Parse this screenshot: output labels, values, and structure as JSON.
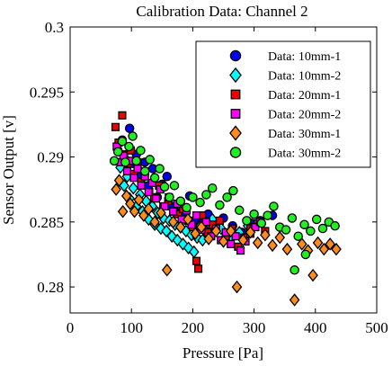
{
  "chart_data": {
    "type": "scatter",
    "title": "Calibration Data: Channel 2",
    "xlabel": "Pressure [Pa]",
    "ylabel": "Sensor Output [v]",
    "xlim": [
      0,
      500
    ],
    "ylim": [
      0.278,
      0.3
    ],
    "xticks": [
      0,
      100,
      200,
      300,
      400,
      500
    ],
    "yticks": [
      0.28,
      0.285,
      0.29,
      0.295,
      0.3
    ],
    "ytick_labels": [
      "0.28",
      "0.285",
      "0.29",
      "0.295",
      "0.3"
    ],
    "grid": false,
    "legend_position": "top-right",
    "series": [
      {
        "name": "Data: 10mm-1",
        "marker": "circle",
        "color": "#0000ee",
        "points": [
          [
            78,
            0.2905
          ],
          [
            85,
            0.2913
          ],
          [
            90,
            0.2898
          ],
          [
            97,
            0.2922
          ],
          [
            102,
            0.2895
          ],
          [
            108,
            0.2902
          ],
          [
            115,
            0.2885
          ],
          [
            122,
            0.2896
          ],
          [
            128,
            0.2878
          ],
          [
            135,
            0.2891
          ],
          [
            142,
            0.2869
          ],
          [
            150,
            0.2879
          ],
          [
            158,
            0.2885
          ],
          [
            165,
            0.2862
          ],
          [
            172,
            0.2858
          ],
          [
            180,
            0.2866
          ],
          [
            188,
            0.2856
          ],
          [
            195,
            0.287
          ],
          [
            205,
            0.2852
          ],
          [
            215,
            0.2849
          ],
          [
            225,
            0.2856
          ],
          [
            235,
            0.2846
          ],
          [
            250,
            0.2853
          ],
          [
            265,
            0.2847
          ],
          [
            280,
            0.2842
          ],
          [
            295,
            0.2849
          ],
          [
            310,
            0.2851
          ],
          [
            330,
            0.2855
          ]
        ]
      },
      {
        "name": "Data: 10mm-2",
        "marker": "diamond",
        "color": "#00ffff",
        "points": [
          [
            82,
            0.2892
          ],
          [
            88,
            0.2878
          ],
          [
            93,
            0.2885
          ],
          [
            97,
            0.2868
          ],
          [
            103,
            0.2876
          ],
          [
            108,
            0.2862
          ],
          [
            114,
            0.2871
          ],
          [
            118,
            0.2858
          ],
          [
            124,
            0.2866
          ],
          [
            128,
            0.2852
          ],
          [
            134,
            0.2862
          ],
          [
            138,
            0.2848
          ],
          [
            143,
            0.2857
          ],
          [
            148,
            0.2845
          ],
          [
            152,
            0.2853
          ],
          [
            157,
            0.2843
          ],
          [
            162,
            0.2851
          ],
          [
            166,
            0.2839
          ],
          [
            171,
            0.2848
          ],
          [
            175,
            0.2836
          ],
          [
            180,
            0.2846
          ],
          [
            184,
            0.2833
          ],
          [
            189,
            0.2843
          ],
          [
            193,
            0.283
          ],
          [
            198,
            0.284
          ],
          [
            202,
            0.2827
          ],
          [
            207,
            0.2838
          ],
          [
            211,
            0.2846
          ],
          [
            216,
            0.2836
          ],
          [
            220,
            0.2843
          ],
          [
            226,
            0.2849
          ],
          [
            232,
            0.2852
          ],
          [
            246,
            0.2845
          ],
          [
            262,
            0.2839
          ],
          [
            276,
            0.2842
          ],
          [
            290,
            0.2847
          ]
        ]
      },
      {
        "name": "Data: 20mm-1",
        "marker": "square",
        "color": "#ee0000",
        "points": [
          [
            74,
            0.2923
          ],
          [
            79,
            0.2911
          ],
          [
            85,
            0.2932
          ],
          [
            88,
            0.2902
          ],
          [
            94,
            0.2895
          ],
          [
            99,
            0.2905
          ],
          [
            104,
            0.2887
          ],
          [
            110,
            0.2896
          ],
          [
            116,
            0.2881
          ],
          [
            122,
            0.2889
          ],
          [
            129,
            0.2873
          ],
          [
            137,
            0.2869
          ],
          [
            145,
            0.2878
          ],
          [
            152,
            0.2862
          ],
          [
            160,
            0.2866
          ],
          [
            168,
            0.2858
          ],
          [
            176,
            0.2856
          ],
          [
            184,
            0.286
          ],
          [
            192,
            0.2851
          ],
          [
            200,
            0.2846
          ],
          [
            206,
            0.282
          ],
          [
            209,
            0.2814
          ],
          [
            215,
            0.2855
          ],
          [
            224,
            0.2842
          ],
          [
            232,
            0.2848
          ],
          [
            244,
            0.2851
          ],
          [
            254,
            0.2839
          ],
          [
            264,
            0.2845
          ],
          [
            274,
            0.2831
          ],
          [
            284,
            0.2838
          ],
          [
            294,
            0.2845
          ],
          [
            306,
            0.2849
          ],
          [
            318,
            0.2843
          ]
        ]
      },
      {
        "name": "Data: 20mm-2",
        "marker": "square",
        "color": "#ff00ff",
        "points": [
          [
            76,
            0.2908
          ],
          [
            82,
            0.2896
          ],
          [
            87,
            0.2901
          ],
          [
            93,
            0.2889
          ],
          [
            98,
            0.2897
          ],
          [
            104,
            0.2884
          ],
          [
            110,
            0.2891
          ],
          [
            116,
            0.2878
          ],
          [
            122,
            0.2885
          ],
          [
            128,
            0.2873
          ],
          [
            134,
            0.288
          ],
          [
            140,
            0.2868
          ],
          [
            147,
            0.2875
          ],
          [
            154,
            0.2862
          ],
          [
            161,
            0.2869
          ],
          [
            168,
            0.2858
          ],
          [
            175,
            0.2864
          ],
          [
            182,
            0.2852
          ],
          [
            190,
            0.2859
          ],
          [
            198,
            0.2848
          ],
          [
            206,
            0.2855
          ],
          [
            214,
            0.2844
          ],
          [
            222,
            0.285
          ],
          [
            230,
            0.2839
          ],
          [
            238,
            0.2845
          ],
          [
            246,
            0.2836
          ],
          [
            254,
            0.2842
          ],
          [
            262,
            0.2833
          ],
          [
            270,
            0.2839
          ],
          [
            278,
            0.2828
          ],
          [
            286,
            0.2835
          ],
          [
            294,
            0.2841
          ],
          [
            302,
            0.2846
          ],
          [
            310,
            0.285
          ]
        ]
      },
      {
        "name": "Data: 30mm-1",
        "marker": "diamond",
        "color": "#ff8c1a",
        "points": [
          [
            75,
            0.2875
          ],
          [
            80,
            0.2882
          ],
          [
            86,
            0.2858
          ],
          [
            92,
            0.287
          ],
          [
            98,
            0.2864
          ],
          [
            105,
            0.2858
          ],
          [
            112,
            0.2867
          ],
          [
            120,
            0.2855
          ],
          [
            128,
            0.286
          ],
          [
            138,
            0.285
          ],
          [
            148,
            0.2857
          ],
          [
            158,
            0.2813
          ],
          [
            168,
            0.285
          ],
          [
            180,
            0.2846
          ],
          [
            192,
            0.2852
          ],
          [
            204,
            0.2841
          ],
          [
            214,
            0.2846
          ],
          [
            226,
            0.2837
          ],
          [
            238,
            0.2843
          ],
          [
            250,
            0.2835
          ],
          [
            262,
            0.2843
          ],
          [
            272,
            0.28
          ],
          [
            282,
            0.2836
          ],
          [
            294,
            0.2842
          ],
          [
            306,
            0.2834
          ],
          [
            318,
            0.284
          ],
          [
            330,
            0.2832
          ],
          [
            342,
            0.2838
          ],
          [
            354,
            0.2829
          ],
          [
            366,
            0.279
          ],
          [
            378,
            0.2833
          ],
          [
            388,
            0.2828
          ],
          [
            396,
            0.2809
          ],
          [
            404,
            0.2834
          ],
          [
            414,
            0.2829
          ],
          [
            424,
            0.2833
          ],
          [
            434,
            0.2829
          ]
        ]
      },
      {
        "name": "Data: 30mm-2",
        "marker": "circle",
        "color": "#22ee22",
        "points": [
          [
            72,
            0.2897
          ],
          [
            78,
            0.2904
          ],
          [
            85,
            0.2912
          ],
          [
            90,
            0.2896
          ],
          [
            96,
            0.2908
          ],
          [
            102,
            0.2916
          ],
          [
            108,
            0.2897
          ],
          [
            115,
            0.2905
          ],
          [
            122,
            0.2889
          ],
          [
            130,
            0.2898
          ],
          [
            138,
            0.2884
          ],
          [
            146,
            0.2891
          ],
          [
            154,
            0.2877
          ],
          [
            162,
            0.2869
          ],
          [
            170,
            0.2878
          ],
          [
            180,
            0.2866
          ],
          [
            190,
            0.2861
          ],
          [
            200,
            0.2869
          ],
          [
            212,
            0.2865
          ],
          [
            222,
            0.2871
          ],
          [
            232,
            0.2876
          ],
          [
            244,
            0.2863
          ],
          [
            256,
            0.2869
          ],
          [
            266,
            0.2874
          ],
          [
            276,
            0.2859
          ],
          [
            288,
            0.2851
          ],
          [
            300,
            0.2856
          ],
          [
            312,
            0.2849
          ],
          [
            322,
            0.2855
          ],
          [
            332,
            0.2862
          ],
          [
            342,
            0.2846
          ],
          [
            352,
            0.2844
          ],
          [
            362,
            0.2853
          ],
          [
            372,
            0.2839
          ],
          [
            382,
            0.2848
          ],
          [
            392,
            0.2843
          ],
          [
            402,
            0.2852
          ],
          [
            412,
            0.2845
          ],
          [
            422,
            0.285
          ],
          [
            432,
            0.2847
          ],
          [
            366,
            0.2813
          ],
          [
            384,
            0.2825
          ]
        ]
      }
    ]
  }
}
